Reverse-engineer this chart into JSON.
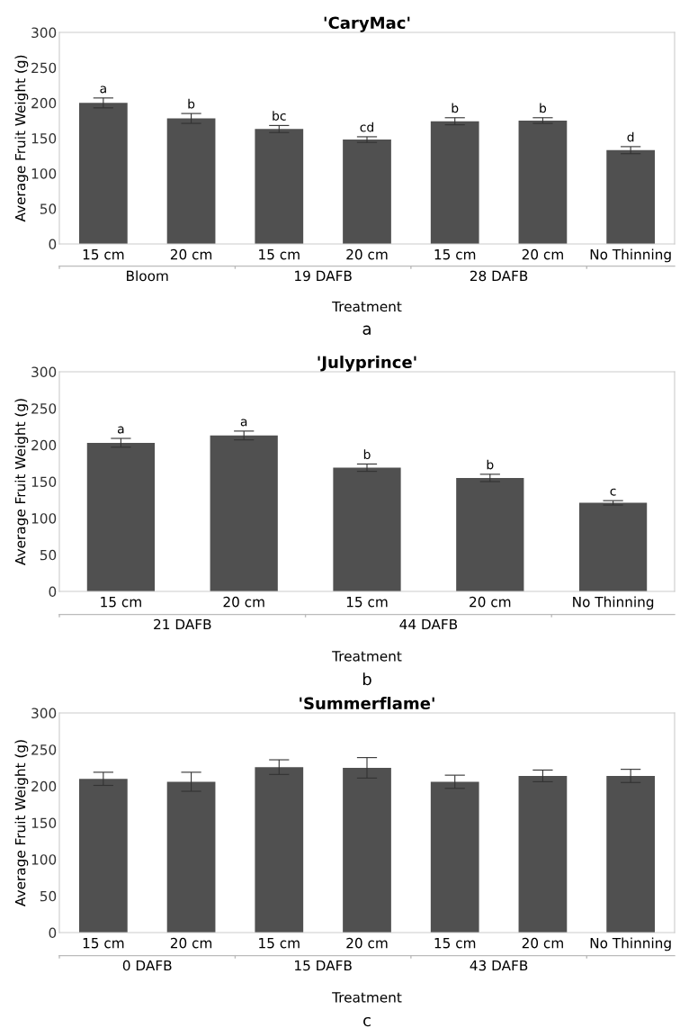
{
  "chart_data": [
    {
      "type": "bar",
      "title": "'CaryMac'",
      "xlabel": "Treatment",
      "ylabel": "Average Fruit Weight (g)",
      "categories": [
        "15 cm",
        "20 cm",
        "15 cm",
        "20 cm",
        "15 cm",
        "20 cm",
        "No Thinning"
      ],
      "values": [
        200,
        178,
        163,
        148,
        174,
        175,
        133
      ],
      "errors": [
        7,
        7,
        5,
        4,
        5,
        4,
        5
      ],
      "value_labels": [
        "a",
        "b",
        "bc",
        "cd",
        "b",
        "b",
        "d"
      ],
      "color": "#505050",
      "ylim": [
        0,
        300
      ],
      "yticks": [
        0,
        50,
        100,
        150,
        200,
        250,
        300
      ],
      "grid": false,
      "annotations": [
        "Bloom",
        "19 DAFB",
        "28 DAFB",
        "a"
      ]
    },
    {
      "type": "bar",
      "title": "'Julyprince'",
      "xlabel": "Treatment",
      "ylabel": "Average Fruit Weight (g)",
      "categories": [
        "15 cm",
        "20 cm",
        "15 cm",
        "20 cm",
        "No Thinning"
      ],
      "values": [
        203,
        213,
        169,
        155,
        121
      ],
      "errors": [
        6,
        6,
        5,
        5,
        3
      ],
      "value_labels": [
        "a",
        "a",
        "b",
        "b",
        "c"
      ],
      "color": "#505050",
      "ylim": [
        0,
        300
      ],
      "yticks": [
        0,
        50,
        100,
        150,
        200,
        250,
        300
      ],
      "grid": false,
      "annotations": [
        "21 DAFB",
        "44 DAFB",
        "b"
      ]
    },
    {
      "type": "bar",
      "title": "'Summerflame'",
      "xlabel": "Treatment",
      "ylabel": "Average Fruit Weight (g)",
      "categories": [
        "15 cm",
        "20 cm",
        "15 cm",
        "20 cm",
        "15 cm",
        "20 cm",
        "No Thinning"
      ],
      "values": [
        210,
        206,
        226,
        225,
        206,
        214,
        214
      ],
      "errors": [
        9,
        13,
        10,
        14,
        9,
        8,
        9
      ],
      "color": "#505050",
      "ylim": [
        0,
        300
      ],
      "yticks": [
        0,
        50,
        100,
        150,
        200,
        250,
        300
      ],
      "grid": false,
      "annotations": [
        "0 DAFB",
        "15 DAFB",
        "43 DAFB",
        "c"
      ]
    }
  ]
}
